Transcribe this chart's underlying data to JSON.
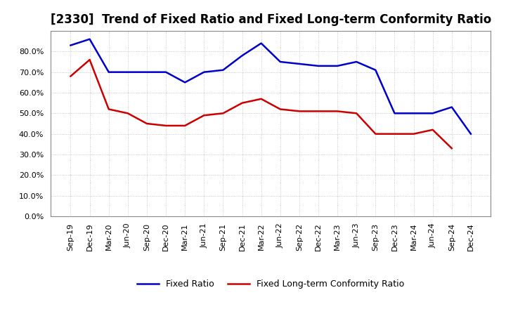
{
  "title": "[2330]  Trend of Fixed Ratio and Fixed Long-term Conformity Ratio",
  "x_labels": [
    "Sep-19",
    "Dec-19",
    "Mar-20",
    "Jun-20",
    "Sep-20",
    "Dec-20",
    "Mar-21",
    "Jun-21",
    "Sep-21",
    "Dec-21",
    "Mar-22",
    "Jun-22",
    "Sep-22",
    "Dec-22",
    "Mar-23",
    "Jun-23",
    "Sep-23",
    "Dec-23",
    "Mar-24",
    "Jun-24",
    "Sep-24",
    "Dec-24"
  ],
  "fixed_ratio": [
    83,
    86,
    70,
    70,
    70,
    70,
    65,
    70,
    71,
    78,
    84,
    75,
    74,
    73,
    73,
    75,
    71,
    50,
    50,
    50,
    53,
    40
  ],
  "fixed_lt_ratio": [
    68,
    76,
    52,
    50,
    45,
    44,
    44,
    49,
    50,
    55,
    57,
    52,
    51,
    51,
    51,
    50,
    40,
    40,
    40,
    42,
    33,
    null
  ],
  "fixed_ratio_color": "#0000CC",
  "fixed_lt_ratio_color": "#CC0000",
  "ylim_max": 90,
  "yticks": [
    0,
    10,
    20,
    30,
    40,
    50,
    60,
    70,
    80
  ],
  "background_color": "#FFFFFF",
  "grid_color": "#AAAAAA",
  "legend_fixed": "Fixed Ratio",
  "legend_lt": "Fixed Long-term Conformity Ratio",
  "title_fontsize": 12,
  "tick_fontsize": 8,
  "legend_fontsize": 9
}
